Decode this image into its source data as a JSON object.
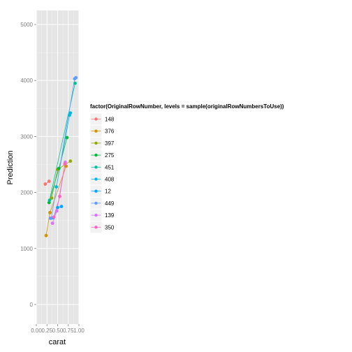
{
  "chart_data": {
    "type": "line",
    "xlabel": "carat",
    "ylabel": "Prediction",
    "xlim": [
      0,
      1
    ],
    "ylim": [
      -350,
      5250
    ],
    "x_ticks": [
      0,
      0.25,
      0.5,
      0.75,
      1
    ],
    "x_tick_labels": [
      "0.00",
      "0.25",
      "0.50",
      "0.75",
      "1.00"
    ],
    "y_ticks": [
      0,
      1000,
      2000,
      3000,
      4000,
      5000
    ],
    "y_tick_labels": [
      "0",
      "1000",
      "2000",
      "3000",
      "4000",
      "5000"
    ],
    "grid": true,
    "legend": {
      "title": "factor(OriginalRowNumber, levels = sample(originalRowNumbersToUse))",
      "placement": "right"
    },
    "series": [
      {
        "name": "148",
        "color": "#F8766D",
        "points": [
          [
            0.21,
            2150
          ],
          [
            0.3,
            2200
          ]
        ]
      },
      {
        "name": "376",
        "color": "#D39200",
        "points": [
          [
            0.23,
            1230
          ],
          [
            0.32,
            1640
          ],
          [
            0.7,
            2470
          ]
        ]
      },
      {
        "name": "397",
        "color": "#93AA00",
        "points": [
          [
            0.36,
            1900
          ],
          [
            0.5,
            2410
          ],
          [
            0.8,
            2560
          ]
        ]
      },
      {
        "name": "275",
        "color": "#00BA38",
        "points": [
          [
            0.3,
            1820
          ],
          [
            0.53,
            2430
          ],
          [
            0.72,
            2980
          ]
        ]
      },
      {
        "name": "451",
        "color": "#00C19F",
        "points": [
          [
            0.31,
            1860
          ],
          [
            0.91,
            3950
          ]
        ]
      },
      {
        "name": "408",
        "color": "#00B9E3",
        "points": [
          [
            0.47,
            2100
          ],
          [
            0.78,
            3380
          ],
          [
            0.8,
            3420
          ]
        ]
      },
      {
        "name": "12",
        "color": "#00A7FF",
        "points": [
          [
            0.4,
            1550
          ],
          [
            0.5,
            1730
          ],
          [
            0.59,
            1750
          ]
        ]
      },
      {
        "name": "449",
        "color": "#619CFF",
        "points": [
          [
            0.33,
            1540
          ],
          [
            0.35,
            1540
          ],
          [
            0.9,
            4030
          ],
          [
            0.93,
            4050
          ]
        ]
      },
      {
        "name": "139",
        "color": "#DB72FB",
        "points": [
          [
            0.38,
            1450
          ],
          [
            0.48,
            1670
          ],
          [
            0.68,
            2540
          ]
        ]
      },
      {
        "name": "350",
        "color": "#FF61C3",
        "points": [
          [
            0.41,
            1560
          ],
          [
            0.55,
            1930
          ],
          [
            0.67,
            2510
          ]
        ]
      }
    ]
  }
}
